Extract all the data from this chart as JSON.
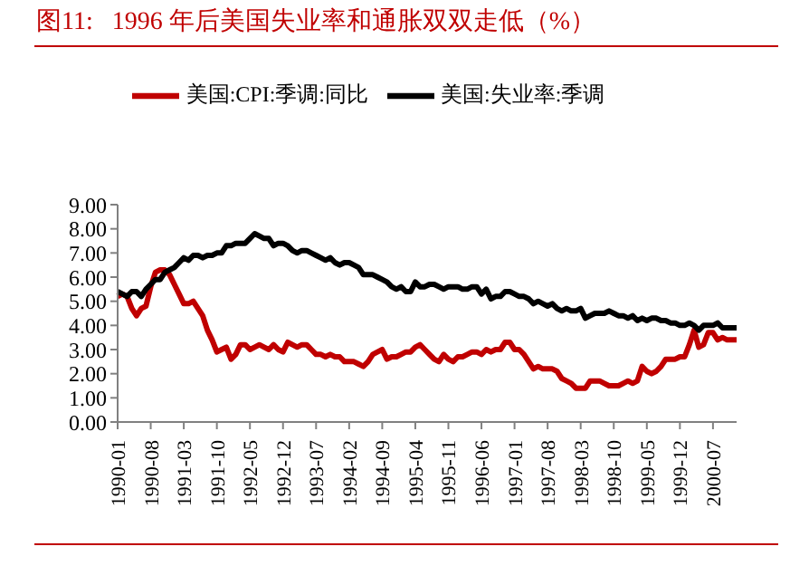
{
  "chart_data": {
    "type": "line",
    "title": "图11:   1996 年后美国失业率和通胀双双走低（%）",
    "categories": [
      "1990-01",
      null,
      null,
      null,
      null,
      null,
      null,
      "1990-08",
      null,
      null,
      null,
      null,
      null,
      null,
      "1991-03",
      null,
      null,
      null,
      null,
      null,
      null,
      "1991-10",
      null,
      null,
      null,
      null,
      null,
      null,
      "1992-05",
      null,
      null,
      null,
      null,
      null,
      null,
      "1992-12",
      null,
      null,
      null,
      null,
      null,
      null,
      "1993-07",
      null,
      null,
      null,
      null,
      null,
      null,
      "1994-02",
      null,
      null,
      null,
      null,
      null,
      null,
      "1994-09",
      null,
      null,
      null,
      null,
      null,
      null,
      "1995-04",
      null,
      null,
      null,
      null,
      null,
      null,
      "1995-11",
      null,
      null,
      null,
      null,
      null,
      null,
      "1996-06",
      null,
      null,
      null,
      null,
      null,
      null,
      "1997-01",
      null,
      null,
      null,
      null,
      null,
      null,
      "1997-08",
      null,
      null,
      null,
      null,
      null,
      null,
      "1998-03",
      null,
      null,
      null,
      null,
      null,
      null,
      "1998-10",
      null,
      null,
      null,
      null,
      null,
      null,
      "1999-05",
      null,
      null,
      null,
      null,
      null,
      null,
      "1999-12",
      null,
      null,
      null,
      null,
      null,
      null,
      "2000-07",
      null,
      null,
      null,
      null,
      null
    ],
    "series": [
      {
        "name": "美国:CPI:季调:同比",
        "color": "#c00000",
        "values": [
          5.2,
          5.3,
          5.2,
          4.7,
          4.4,
          4.7,
          4.8,
          5.6,
          6.2,
          6.3,
          6.3,
          6.1,
          5.7,
          5.3,
          4.9,
          4.9,
          5.0,
          4.7,
          4.4,
          3.8,
          3.4,
          2.9,
          3.0,
          3.1,
          2.6,
          2.8,
          3.2,
          3.2,
          3.0,
          3.1,
          3.2,
          3.1,
          3.0,
          3.2,
          3.0,
          2.9,
          3.3,
          3.2,
          3.1,
          3.2,
          3.2,
          3.0,
          2.8,
          2.8,
          2.7,
          2.8,
          2.7,
          2.7,
          2.5,
          2.5,
          2.5,
          2.4,
          2.3,
          2.5,
          2.8,
          2.9,
          3.0,
          2.6,
          2.7,
          2.7,
          2.8,
          2.9,
          2.9,
          3.1,
          3.2,
          3.0,
          2.8,
          2.6,
          2.5,
          2.8,
          2.6,
          2.5,
          2.7,
          2.7,
          2.8,
          2.9,
          2.9,
          2.8,
          3.0,
          2.9,
          3.0,
          3.0,
          3.3,
          3.3,
          3.0,
          3.0,
          2.8,
          2.5,
          2.2,
          2.3,
          2.2,
          2.2,
          2.2,
          2.1,
          1.8,
          1.7,
          1.6,
          1.4,
          1.4,
          1.4,
          1.7,
          1.7,
          1.7,
          1.6,
          1.5,
          1.5,
          1.5,
          1.6,
          1.7,
          1.6,
          1.7,
          2.3,
          2.1,
          2.0,
          2.1,
          2.3,
          2.6,
          2.6,
          2.6,
          2.7,
          2.7,
          3.2,
          3.8,
          3.1,
          3.2,
          3.7,
          3.7,
          3.4,
          3.5,
          3.4,
          3.4,
          3.4
        ]
      },
      {
        "name": "美国:失业率:季调",
        "color": "#000000",
        "values": [
          5.4,
          5.3,
          5.2,
          5.4,
          5.4,
          5.2,
          5.5,
          5.7,
          5.9,
          5.9,
          6.2,
          6.3,
          6.4,
          6.6,
          6.8,
          6.7,
          6.9,
          6.9,
          6.8,
          6.9,
          6.9,
          7.0,
          7.0,
          7.3,
          7.3,
          7.4,
          7.4,
          7.4,
          7.6,
          7.8,
          7.7,
          7.6,
          7.6,
          7.3,
          7.4,
          7.4,
          7.3,
          7.1,
          7.0,
          7.1,
          7.1,
          7.0,
          6.9,
          6.8,
          6.7,
          6.8,
          6.6,
          6.5,
          6.6,
          6.6,
          6.5,
          6.4,
          6.1,
          6.1,
          6.1,
          6.0,
          5.9,
          5.8,
          5.6,
          5.5,
          5.6,
          5.4,
          5.4,
          5.8,
          5.6,
          5.6,
          5.7,
          5.7,
          5.6,
          5.5,
          5.6,
          5.6,
          5.6,
          5.5,
          5.5,
          5.6,
          5.6,
          5.3,
          5.5,
          5.1,
          5.2,
          5.2,
          5.4,
          5.4,
          5.3,
          5.2,
          5.2,
          5.1,
          4.9,
          5.0,
          4.9,
          4.8,
          4.9,
          4.7,
          4.6,
          4.7,
          4.6,
          4.6,
          4.7,
          4.3,
          4.4,
          4.5,
          4.5,
          4.5,
          4.6,
          4.5,
          4.4,
          4.4,
          4.3,
          4.4,
          4.2,
          4.3,
          4.2,
          4.3,
          4.3,
          4.2,
          4.2,
          4.1,
          4.1,
          4.0,
          4.0,
          4.1,
          4.0,
          3.8,
          4.0,
          4.0,
          4.0,
          4.1,
          3.9,
          3.9,
          3.9,
          3.9
        ]
      }
    ],
    "ylim": [
      0,
      9
    ],
    "yticks": [
      {
        "value": 0,
        "label": "0.00"
      },
      {
        "value": 1,
        "label": "1.00"
      },
      {
        "value": 2,
        "label": "2.00"
      },
      {
        "value": 3,
        "label": "3.00"
      },
      {
        "value": 4,
        "label": "4.00"
      },
      {
        "value": 5,
        "label": "5.00"
      },
      {
        "value": 6,
        "label": "6.00"
      },
      {
        "value": 7,
        "label": "7.00"
      },
      {
        "value": 8,
        "label": "8.00"
      },
      {
        "value": 9,
        "label": "9.00"
      }
    ],
    "grid": false,
    "legend": "top",
    "marker": "none",
    "line_style": "solid"
  }
}
